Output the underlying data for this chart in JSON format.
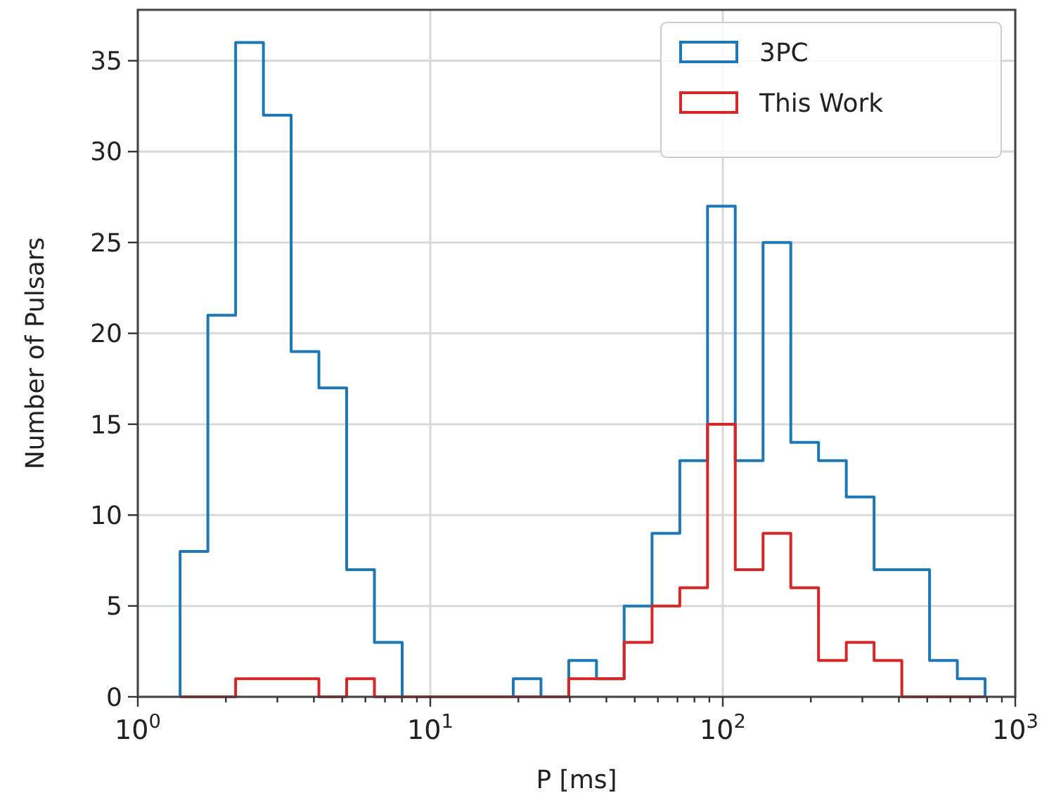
{
  "chart_data": {
    "type": "histogram",
    "xlabel": "P [ms]",
    "ylabel": "Number of Pulsars",
    "log": "x",
    "grid": true,
    "legend": "top right",
    "xlim": [
      1,
      1000
    ],
    "ylim": [
      0,
      37.8
    ],
    "xticks": [
      {
        "value": 1,
        "label": "10$^{0}$"
      },
      {
        "value": 2,
        "label": null
      },
      {
        "value": 3,
        "label": null
      },
      {
        "value": 4,
        "label": null
      },
      {
        "value": 5,
        "label": null
      },
      {
        "value": 6,
        "label": null
      },
      {
        "value": 7,
        "label": null
      },
      {
        "value": 8,
        "label": null
      },
      {
        "value": 9,
        "label": null
      },
      {
        "value": 10,
        "label": "10$^{1}$"
      },
      {
        "value": 20,
        "label": null
      },
      {
        "value": 30,
        "label": null
      },
      {
        "value": 40,
        "label": null
      },
      {
        "value": 50,
        "label": null
      },
      {
        "value": 60,
        "label": null
      },
      {
        "value": 70,
        "label": null
      },
      {
        "value": 80,
        "label": null
      },
      {
        "value": 90,
        "label": null
      },
      {
        "value": 100,
        "label": "10$^{2}$"
      },
      {
        "value": 200,
        "label": null
      },
      {
        "value": 300,
        "label": null
      },
      {
        "value": 400,
        "label": null
      },
      {
        "value": 500,
        "label": null
      },
      {
        "value": 600,
        "label": null
      },
      {
        "value": 700,
        "label": null
      },
      {
        "value": 800,
        "label": null
      },
      {
        "value": 900,
        "label": null
      },
      {
        "value": 1000,
        "label": "10$^{3}$"
      }
    ],
    "yticks": [
      0,
      5,
      10,
      15,
      20,
      25,
      30,
      35
    ],
    "bins": [
      1.395,
      1.736,
      2.16,
      2.688,
      3.344,
      4.16,
      5.176,
      6.441,
      8.014,
      9.97,
      12.41,
      15.44,
      19.21,
      23.9,
      29.74,
      37.0,
      46.0,
      57.3,
      71.3,
      88.7,
      110.3,
      137.3,
      170.8,
      212.5,
      264.4,
      329.0,
      409.3,
      509.3,
      633.7,
      788.5
    ],
    "series": [
      {
        "name": "3PC",
        "color": "#1f77b4",
        "values": [
          8,
          21,
          36,
          32,
          19,
          17,
          7,
          3,
          0,
          0,
          0,
          0,
          1,
          0,
          2,
          1,
          5,
          9,
          13,
          27,
          13,
          25,
          14,
          13,
          11,
          7,
          7,
          2,
          1
        ]
      },
      {
        "name": "This Work",
        "color": "#d62728",
        "values": [
          0,
          0,
          1,
          1,
          1,
          0,
          1,
          0,
          0,
          0,
          0,
          0,
          0,
          0,
          1,
          1,
          3,
          5,
          6,
          15,
          7,
          9,
          6,
          2,
          3,
          2,
          0,
          0,
          0
        ]
      }
    ]
  }
}
